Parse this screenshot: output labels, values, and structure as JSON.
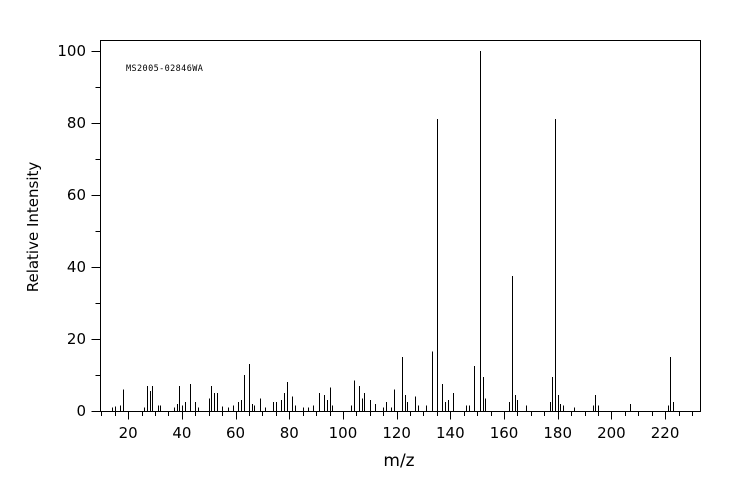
{
  "figure": {
    "background": "#ffffff",
    "foreground": "#000000",
    "annotation": "MS2005-02846WA"
  },
  "chart_data": {
    "type": "bar",
    "subtype": "mass-spectrum-stick-plot",
    "annotation": "MS2005-02846WA",
    "xlabel": "m/z",
    "ylabel": "Relative Intensity",
    "xlim": [
      9.5,
      233
    ],
    "ylim": [
      0,
      103
    ],
    "x_major_ticks": [
      20,
      40,
      60,
      80,
      100,
      120,
      140,
      160,
      180,
      200,
      220
    ],
    "x_minor_tick_step": 5,
    "y_major_ticks": [
      0,
      20,
      40,
      60,
      80,
      100
    ],
    "y_minor_tick_step": 10,
    "grid": false,
    "legend": false,
    "peaks_mz_intensity": [
      [
        14,
        1
      ],
      [
        15,
        1.3
      ],
      [
        17,
        1.5
      ],
      [
        18,
        6
      ],
      [
        26,
        1
      ],
      [
        27,
        7
      ],
      [
        28,
        5.5
      ],
      [
        29,
        7
      ],
      [
        31,
        1.5
      ],
      [
        32,
        1.5
      ],
      [
        37,
        1
      ],
      [
        38,
        2
      ],
      [
        39,
        7
      ],
      [
        40,
        1.5
      ],
      [
        41,
        2.5
      ],
      [
        43,
        7.5
      ],
      [
        45,
        2.5
      ],
      [
        46,
        1
      ],
      [
        50,
        3.5
      ],
      [
        51,
        7
      ],
      [
        52,
        5
      ],
      [
        53,
        5
      ],
      [
        55,
        1.3
      ],
      [
        57,
        1
      ],
      [
        59,
        1.5
      ],
      [
        61,
        2.5
      ],
      [
        62,
        3
      ],
      [
        63,
        10
      ],
      [
        65,
        13
      ],
      [
        66,
        2
      ],
      [
        67,
        1.5
      ],
      [
        69,
        3.5
      ],
      [
        71,
        1
      ],
      [
        74,
        2.5
      ],
      [
        75,
        2.5
      ],
      [
        77,
        3
      ],
      [
        78,
        5
      ],
      [
        79,
        8
      ],
      [
        81,
        4
      ],
      [
        82,
        1.5
      ],
      [
        85,
        1
      ],
      [
        87,
        1
      ],
      [
        89,
        1.5
      ],
      [
        91,
        5
      ],
      [
        93,
        4.5
      ],
      [
        94,
        3
      ],
      [
        95,
        6.5
      ],
      [
        96,
        1.5
      ],
      [
        103,
        1.5
      ],
      [
        104,
        8.5
      ],
      [
        106,
        7
      ],
      [
        107,
        3.5
      ],
      [
        108,
        5
      ],
      [
        110,
        3
      ],
      [
        112,
        2
      ],
      [
        115,
        1
      ],
      [
        116,
        2.5
      ],
      [
        118,
        1
      ],
      [
        119,
        6
      ],
      [
        122,
        15
      ],
      [
        123,
        4.5
      ],
      [
        124,
        2.5
      ],
      [
        127,
        4
      ],
      [
        128,
        1.5
      ],
      [
        131,
        1.5
      ],
      [
        133,
        16.5
      ],
      [
        135,
        81
      ],
      [
        137,
        7.5
      ],
      [
        138,
        2.5
      ],
      [
        139,
        3
      ],
      [
        141,
        5
      ],
      [
        146,
        1.5
      ],
      [
        147,
        1.5
      ],
      [
        149,
        12.5
      ],
      [
        151,
        100
      ],
      [
        152,
        9.5
      ],
      [
        153,
        3.5
      ],
      [
        162,
        2.5
      ],
      [
        163,
        37.5
      ],
      [
        164,
        4.5
      ],
      [
        165,
        3
      ],
      [
        168,
        1.5
      ],
      [
        177,
        2.5
      ],
      [
        178,
        9.5
      ],
      [
        179,
        81
      ],
      [
        180,
        4.5
      ],
      [
        181,
        2
      ],
      [
        182,
        1.5
      ],
      [
        186,
        1
      ],
      [
        193,
        1.5
      ],
      [
        194,
        4.5
      ],
      [
        195,
        1.5
      ],
      [
        207,
        2
      ],
      [
        221,
        1.5
      ],
      [
        222,
        15
      ],
      [
        223,
        2.5
      ]
    ]
  }
}
